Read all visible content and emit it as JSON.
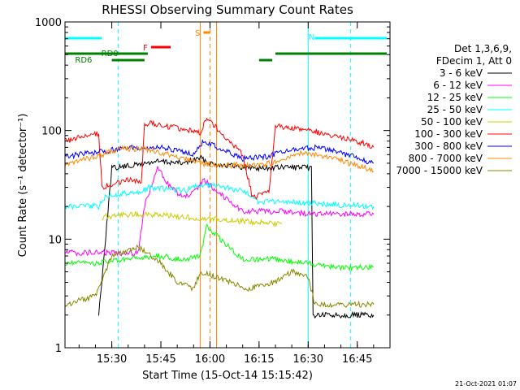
{
  "chart_data": {
    "type": "line",
    "title": "RHESSI Observing Summary Count Rates",
    "xlabel": "Start Time (15-Oct-14 15:15:42)",
    "ylabel": "Count Rate (s⁻¹ detector⁻¹)",
    "yscale": "log",
    "ylim": [
      1,
      1000
    ],
    "xlim": [
      "15:15:42",
      "16:55:00"
    ],
    "x_ticks": [
      "15:30",
      "15:45",
      "16:00",
      "16:15",
      "16:30",
      "16:45"
    ],
    "y_ticks": [
      "1",
      "10",
      "100",
      "1000"
    ],
    "legend_header": [
      "Det 1,3,6,9,",
      "FDecim 1, Att 0"
    ],
    "series": [
      {
        "name": "3 - 6 keV",
        "color": "#000000",
        "points": [
          [
            "15:26",
            2
          ],
          [
            "15:30",
            45
          ],
          [
            "15:37",
            48
          ],
          [
            "15:44",
            52
          ],
          [
            "15:52",
            50
          ],
          [
            "15:57",
            56
          ],
          [
            "16:00",
            50
          ],
          [
            "16:10",
            46
          ],
          [
            "16:17",
            45
          ],
          [
            "16:24",
            46
          ],
          [
            "16:31",
            45
          ],
          [
            "16:31:30",
            2
          ],
          [
            "16:40",
            2
          ],
          [
            "16:50",
            2
          ]
        ]
      },
      {
        "name": "6 - 12 keV",
        "color": "#ff00ff",
        "points": [
          [
            "15:15:42",
            7.5
          ],
          [
            "15:30",
            7.5
          ],
          [
            "15:38",
            7.5
          ],
          [
            "15:40",
            20
          ],
          [
            "15:44",
            45
          ],
          [
            "15:48",
            30
          ],
          [
            "15:52",
            24
          ],
          [
            "15:56",
            28
          ],
          [
            "15:58",
            35
          ],
          [
            "16:10",
            18
          ],
          [
            "16:16",
            18
          ],
          [
            "16:24",
            18
          ],
          [
            "16:30",
            17
          ],
          [
            "16:40",
            17
          ],
          [
            "16:50",
            17
          ]
        ]
      },
      {
        "name": "12 - 25 keV",
        "color": "#00ff00",
        "points": [
          [
            "15:15:42",
            6
          ],
          [
            "15:25",
            6
          ],
          [
            "15:35",
            6.5
          ],
          [
            "15:44",
            7
          ],
          [
            "15:52",
            6.5
          ],
          [
            "15:57",
            7
          ],
          [
            "15:59",
            13
          ],
          [
            "16:10",
            6.5
          ],
          [
            "16:20",
            6.5
          ],
          [
            "16:30",
            6
          ],
          [
            "16:40",
            5.5
          ],
          [
            "16:50",
            5.5
          ]
        ]
      },
      {
        "name": "25 - 50 keV",
        "color": "#00ffff",
        "points": [
          [
            "15:15:42",
            20
          ],
          [
            "15:26",
            20
          ],
          [
            "15:28",
            25
          ],
          [
            "15:36",
            27
          ],
          [
            "15:39",
            27
          ],
          [
            "15:41",
            30
          ],
          [
            "15:52",
            28
          ],
          [
            "15:58",
            32
          ],
          [
            "16:10",
            28
          ],
          [
            "16:15",
            22
          ],
          [
            "16:25",
            22
          ],
          [
            "16:35",
            21
          ],
          [
            "16:50",
            20
          ]
        ]
      },
      {
        "name": "50 - 100 keV",
        "color": "#cccc00",
        "points": [
          [
            "15:27",
            16
          ],
          [
            "15:37",
            17
          ],
          [
            "15:40",
            17
          ],
          [
            "16:18",
            14
          ],
          [
            "16:22",
            14
          ]
        ]
      },
      {
        "name": "100 - 300 keV",
        "color": "#ff0000",
        "points": [
          [
            "15:15:42",
            80
          ],
          [
            "15:26",
            95
          ],
          [
            "15:27",
            30
          ],
          [
            "15:36",
            36
          ],
          [
            "15:39",
            32
          ],
          [
            "15:40",
            118
          ],
          [
            "15:55",
            100
          ],
          [
            "15:57",
            95
          ],
          [
            "15:59",
            130
          ],
          [
            "16:10",
            60
          ],
          [
            "16:13",
            24
          ],
          [
            "16:18",
            27
          ],
          [
            "16:20",
            110
          ],
          [
            "16:31",
            100
          ],
          [
            "16:45",
            80
          ],
          [
            "16:50",
            70
          ]
        ]
      },
      {
        "name": "300 - 800 keV",
        "color": "#0000ff",
        "points": [
          [
            "15:15:42",
            58
          ],
          [
            "15:26",
            63
          ],
          [
            "15:35",
            70
          ],
          [
            "15:45",
            70
          ],
          [
            "15:55",
            60
          ],
          [
            "15:58",
            80
          ],
          [
            "16:10",
            55
          ],
          [
            "16:18",
            58
          ],
          [
            "16:25",
            67
          ],
          [
            "16:33",
            70
          ],
          [
            "16:42",
            60
          ],
          [
            "16:50",
            50
          ]
        ]
      },
      {
        "name": "800 - 7000 keV",
        "color": "#ff8800",
        "points": [
          [
            "15:15:42",
            48
          ],
          [
            "15:25",
            58
          ],
          [
            "15:33",
            68
          ],
          [
            "15:40",
            68
          ],
          [
            "15:50",
            58
          ],
          [
            "15:57",
            50
          ],
          [
            "16:05",
            48
          ],
          [
            "16:15",
            48
          ],
          [
            "16:22",
            52
          ],
          [
            "16:28",
            63
          ],
          [
            "16:35",
            58
          ],
          [
            "16:45",
            48
          ],
          [
            "16:50",
            42
          ]
        ]
      },
      {
        "name": "7000 - 15000 keV",
        "color": "#888800",
        "points": [
          [
            "15:15:42",
            2.5
          ],
          [
            "15:25",
            3
          ],
          [
            "15:30",
            7
          ],
          [
            "15:38",
            8.5
          ],
          [
            "15:45",
            6
          ],
          [
            "15:50",
            4
          ],
          [
            "15:55",
            3.5
          ],
          [
            "15:57",
            5
          ],
          [
            "16:12",
            3.5
          ],
          [
            "16:20",
            4
          ],
          [
            "16:25",
            5
          ],
          [
            "16:30",
            4.5
          ],
          [
            "16:32",
            2.5
          ],
          [
            "16:50",
            2.5
          ]
        ]
      }
    ],
    "flag_bars": [
      {
        "label": "N",
        "color": "#00ffff",
        "segments": [
          [
            "15:15:42",
            "15:27"
          ],
          [
            "16:32",
            "16:54"
          ]
        ]
      },
      {
        "label": "F",
        "color": "#ff0000",
        "segments": [
          [
            "15:42",
            "15:48"
          ]
        ]
      },
      {
        "label": "S",
        "color": "#ff8800",
        "segments": [
          [
            "15:58",
            "16:00"
          ]
        ]
      },
      {
        "label": "RD0",
        "color": "#008000",
        "segments": [
          [
            "15:15:42",
            "15:41"
          ],
          [
            "16:20",
            "16:54"
          ]
        ]
      },
      {
        "label": "RD6",
        "color": "#008000",
        "segments": [
          [
            "15:30",
            "15:40"
          ],
          [
            "16:15",
            "16:19"
          ]
        ]
      }
    ],
    "vertical_markers": [
      {
        "time": "15:32",
        "color": "#00ffff",
        "style": "dashed"
      },
      {
        "time": "15:57",
        "color": "#ff8800",
        "style": "solid"
      },
      {
        "time": "16:00",
        "color": "#ff8800",
        "style": "dashed"
      },
      {
        "time": "16:02",
        "color": "#ff8800",
        "style": "solid"
      },
      {
        "time": "16:30",
        "color": "#00ffff",
        "style": "solid"
      },
      {
        "time": "16:43",
        "color": "#00ffff",
        "style": "dashed"
      }
    ],
    "grid": false,
    "legend_position": "right"
  },
  "footer": {
    "date_stamp": "21-Oct-2021 01:07"
  }
}
